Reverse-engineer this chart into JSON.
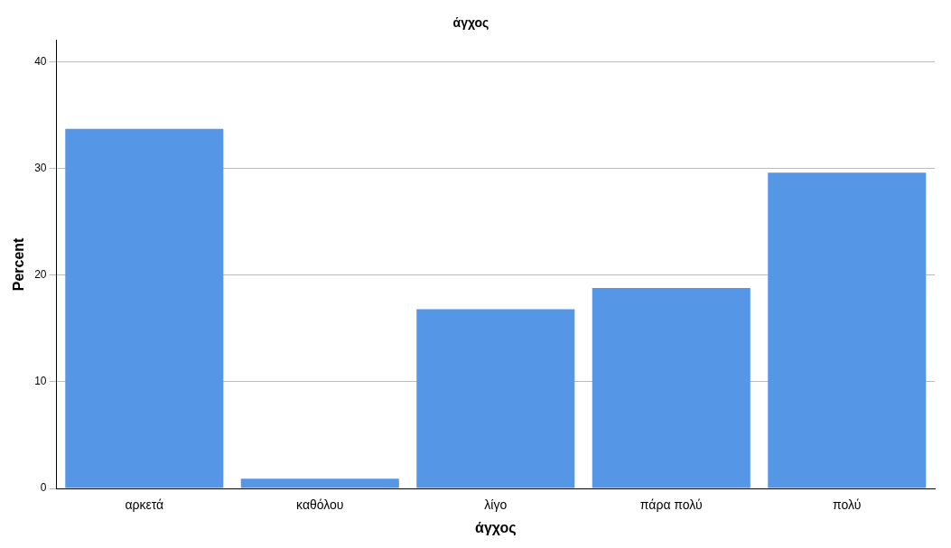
{
  "chart_data": {
    "type": "bar",
    "title": "άγχος",
    "xlabel": "άγχος",
    "ylabel": "Percent",
    "categories": [
      "αρκετά",
      "καθόλου",
      "λίγο",
      "πάρα πολύ",
      "πολύ"
    ],
    "values": [
      33.7,
      0.9,
      16.8,
      18.8,
      29.6
    ],
    "color": "#5596e6",
    "ylim": [
      0,
      42
    ],
    "yticks": [
      0,
      10,
      20,
      30,
      40
    ],
    "grid": "y",
    "legend": false
  }
}
